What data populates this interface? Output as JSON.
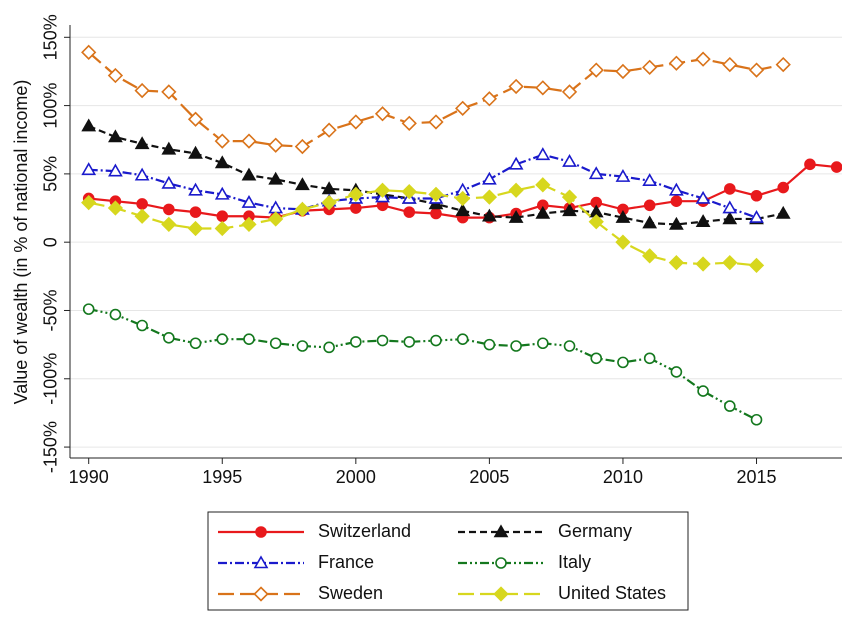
{
  "chart_data": {
    "type": "line",
    "y_label": "Value of wealth (in % of national income)",
    "x": [
      1990,
      1991,
      1992,
      1993,
      1994,
      1995,
      1996,
      1997,
      1998,
      1999,
      2000,
      2001,
      2002,
      2003,
      2004,
      2005,
      2006,
      2007,
      2008,
      2009,
      2010,
      2011,
      2012,
      2013,
      2014,
      2015,
      2016,
      2017,
      2018
    ],
    "xlim": [
      1989.3,
      2018.2
    ],
    "xticks": [
      1990,
      1995,
      2000,
      2005,
      2010,
      2015
    ],
    "ylim": [
      -158,
      159
    ],
    "yticks": [
      {
        "value": -150,
        "label": "-150%"
      },
      {
        "value": -100,
        "label": "-100%"
      },
      {
        "value": -50,
        "label": "-50%"
      },
      0,
      {
        "value": 50,
        "label": "50%"
      },
      {
        "value": 100,
        "label": "100%"
      },
      {
        "value": 150,
        "label": "150%"
      }
    ],
    "grid": true,
    "legend": "bottom",
    "series": [
      {
        "name": "Switzerland",
        "color": "#e8191c",
        "marker": "circle",
        "filled": true,
        "dash": "solid",
        "values": [
          32,
          30,
          28,
          24,
          22,
          19,
          19,
          18,
          23,
          24,
          25,
          27,
          22,
          21,
          18,
          18,
          21,
          27,
          25,
          29,
          24,
          27,
          30,
          30,
          39,
          34,
          40,
          57,
          55
        ]
      },
      {
        "name": "Germany",
        "color": "#111111",
        "marker": "triangle",
        "filled": true,
        "dash": "dash",
        "values": [
          85,
          77,
          72,
          68,
          65,
          58,
          49,
          46,
          42,
          39,
          38,
          35,
          32,
          28,
          23,
          19,
          18,
          21,
          23,
          22,
          18,
          14,
          13,
          15,
          17,
          17,
          21,
          null,
          null
        ]
      },
      {
        "name": "France",
        "color": "#1a1acc",
        "marker": "triangle",
        "filled": false,
        "dash": "dashdot",
        "values": [
          53,
          52,
          49,
          43,
          38,
          35,
          29,
          25,
          24,
          30,
          32,
          33,
          32,
          32,
          38,
          46,
          57,
          64,
          59,
          50,
          48,
          45,
          38,
          32,
          25,
          18,
          null,
          null,
          null
        ]
      },
      {
        "name": "Italy",
        "color": "#14781e",
        "marker": "circle",
        "filled": false,
        "dash": "dashdotdot",
        "values": [
          -49,
          -53,
          -61,
          -70,
          -74,
          -71,
          -71,
          -74,
          -76,
          -77,
          -73,
          -72,
          -73,
          -72,
          -71,
          -75,
          -76,
          -74,
          -76,
          -85,
          -88,
          -85,
          -95,
          -109,
          -120,
          -130,
          null,
          null,
          null
        ]
      },
      {
        "name": "Sweden",
        "color": "#d9731a",
        "marker": "diamond",
        "filled": false,
        "dash": "longdash",
        "values": [
          139,
          122,
          111,
          110,
          90,
          74,
          74,
          71,
          70,
          82,
          88,
          94,
          87,
          88,
          98,
          105,
          114,
          113,
          110,
          126,
          125,
          128,
          131,
          134,
          130,
          126,
          130,
          null,
          null
        ]
      },
      {
        "name": "United States",
        "color": "#d7d71e",
        "marker": "diamond",
        "filled": true,
        "dash": "longdash",
        "values": [
          29,
          25,
          19,
          13,
          10,
          10,
          13,
          17,
          24,
          29,
          35,
          38,
          37,
          35,
          32,
          33,
          38,
          42,
          33,
          15,
          0,
          -10,
          -15,
          -16,
          -15,
          -17,
          null,
          null,
          null
        ]
      }
    ]
  }
}
